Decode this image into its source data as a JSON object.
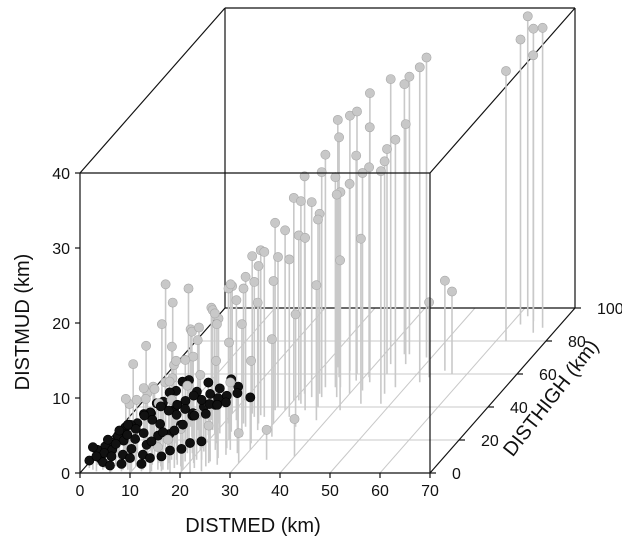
{
  "chart_data": {
    "type": "scatter",
    "style": "3d-stem",
    "title": "",
    "xlabel": "DISTMED (km)",
    "ylabel": "DISTHIGH (km)",
    "zlabel": "DISTMUD (km)",
    "xlim": [
      0,
      70
    ],
    "ylim": [
      0,
      100
    ],
    "zlim": [
      0,
      40
    ],
    "x_ticks": [
      "0",
      "10",
      "20",
      "30",
      "40",
      "50",
      "60",
      "70"
    ],
    "y_ticks": [
      "0",
      "20",
      "40",
      "60",
      "80",
      "100"
    ],
    "z_ticks": [
      "0",
      "10",
      "20",
      "30",
      "40"
    ],
    "grid": true,
    "colors": {
      "gray_series": "#c8c8c8",
      "black_series": "#111111",
      "stem": "#c9c9c9",
      "box": "#111111"
    },
    "series": [
      {
        "color": "#c8c8c8",
        "points": [
          [
            62,
            95,
            40
          ],
          [
            62,
            90,
            38
          ],
          [
            64,
            92,
            39
          ],
          [
            67,
            88,
            40
          ],
          [
            66,
            85,
            37
          ],
          [
            62,
            80,
            36
          ],
          [
            52,
            55,
            42
          ],
          [
            49,
            70,
            40
          ],
          [
            45,
            72,
            37
          ],
          [
            40,
            62,
            37
          ],
          [
            43,
            66,
            38
          ],
          [
            44,
            72,
            36
          ],
          [
            42,
            55,
            34
          ],
          [
            48,
            42,
            31
          ],
          [
            47,
            48,
            31
          ],
          [
            48,
            52,
            33
          ],
          [
            33,
            64,
            33
          ],
          [
            36,
            62,
            34
          ],
          [
            38,
            60,
            35
          ],
          [
            35,
            58,
            32
          ],
          [
            34,
            52,
            31
          ],
          [
            31,
            48,
            29
          ],
          [
            32,
            42,
            27
          ],
          [
            35,
            46,
            30
          ],
          [
            28,
            38,
            25
          ],
          [
            30,
            44,
            27
          ],
          [
            26,
            35,
            22
          ],
          [
            24,
            36,
            21
          ],
          [
            27,
            30,
            21
          ],
          [
            25,
            28,
            20
          ],
          [
            22,
            28,
            19
          ],
          [
            20,
            24,
            16
          ],
          [
            21,
            30,
            18
          ],
          [
            18,
            20,
            15
          ],
          [
            19,
            26,
            16
          ],
          [
            16,
            22,
            14
          ],
          [
            17,
            14,
            12
          ],
          [
            14,
            18,
            11
          ],
          [
            15,
            12,
            10
          ],
          [
            12,
            10,
            9
          ],
          [
            13,
            14,
            9
          ],
          [
            10,
            12,
            8
          ],
          [
            8,
            4,
            9
          ],
          [
            11,
            6,
            10
          ],
          [
            12,
            4,
            9
          ],
          [
            14,
            6,
            8
          ],
          [
            16,
            8,
            8
          ],
          [
            18,
            12,
            9
          ],
          [
            20,
            14,
            10
          ],
          [
            22,
            18,
            11
          ],
          [
            24,
            20,
            13
          ],
          [
            26,
            22,
            15
          ],
          [
            28,
            26,
            17
          ],
          [
            30,
            30,
            19
          ],
          [
            32,
            34,
            21
          ],
          [
            34,
            38,
            23
          ],
          [
            36,
            40,
            25
          ],
          [
            38,
            46,
            27
          ],
          [
            40,
            48,
            28
          ],
          [
            42,
            50,
            29
          ],
          [
            39,
            56,
            30
          ],
          [
            36,
            52,
            28
          ],
          [
            33,
            46,
            26
          ],
          [
            30,
            38,
            24
          ],
          [
            27,
            34,
            22
          ],
          [
            24,
            30,
            18
          ],
          [
            21,
            22,
            15
          ],
          [
            18,
            16,
            12
          ],
          [
            15,
            10,
            10
          ],
          [
            9,
            8,
            8
          ],
          [
            7,
            10,
            7
          ],
          [
            10,
            16,
            8
          ],
          [
            13,
            20,
            10
          ],
          [
            16,
            26,
            12
          ],
          [
            19,
            30,
            14
          ],
          [
            22,
            32,
            16
          ],
          [
            25,
            34,
            18
          ],
          [
            28,
            40,
            20
          ],
          [
            31,
            44,
            22
          ],
          [
            34,
            48,
            24
          ],
          [
            37,
            52,
            26
          ],
          [
            41,
            58,
            28
          ],
          [
            44,
            60,
            30
          ],
          [
            46,
            66,
            32
          ],
          [
            23,
            10,
            7
          ],
          [
            26,
            14,
            9
          ],
          [
            29,
            18,
            11
          ],
          [
            32,
            22,
            13
          ],
          [
            35,
            28,
            15
          ],
          [
            38,
            32,
            18
          ],
          [
            41,
            38,
            20
          ],
          [
            44,
            42,
            22
          ],
          [
            12,
            22,
            12
          ],
          [
            14,
            28,
            13
          ],
          [
            17,
            32,
            15
          ],
          [
            20,
            36,
            17
          ],
          [
            6,
            16,
            11
          ],
          [
            8,
            18,
            13
          ],
          [
            10,
            22,
            15
          ],
          [
            11,
            26,
            17
          ],
          [
            13,
            30,
            18
          ],
          [
            9,
            28,
            19
          ],
          [
            21,
            8,
            6
          ],
          [
            24,
            6,
            5
          ],
          [
            19,
            4,
            5
          ],
          [
            17,
            2,
            4
          ],
          [
            15,
            2,
            3
          ],
          [
            55,
            62,
            12
          ],
          [
            57,
            60,
            11
          ],
          [
            53,
            58,
            10
          ],
          [
            40,
            10,
            5
          ],
          [
            35,
            8,
            4
          ],
          [
            30,
            6,
            4
          ]
        ]
      },
      {
        "color": "#111111",
        "points": [
          [
            2,
            2,
            3
          ],
          [
            3,
            1,
            2
          ],
          [
            4,
            3,
            2
          ],
          [
            5,
            2,
            4
          ],
          [
            6,
            4,
            3
          ],
          [
            7,
            3,
            5
          ],
          [
            8,
            5,
            4
          ],
          [
            9,
            2,
            6
          ],
          [
            10,
            4,
            5
          ],
          [
            11,
            6,
            4
          ],
          [
            12,
            3,
            7
          ],
          [
            13,
            5,
            6
          ],
          [
            14,
            7,
            5
          ],
          [
            15,
            4,
            8
          ],
          [
            16,
            6,
            7
          ],
          [
            17,
            8,
            6
          ],
          [
            18,
            5,
            8
          ],
          [
            19,
            7,
            7
          ],
          [
            20,
            9,
            6
          ],
          [
            21,
            6,
            9
          ],
          [
            22,
            8,
            8
          ],
          [
            23,
            10,
            7
          ],
          [
            24,
            7,
            9
          ],
          [
            25,
            9,
            8
          ],
          [
            26,
            11,
            7
          ],
          [
            28,
            12,
            8
          ],
          [
            30,
            14,
            7
          ],
          [
            3,
            4,
            1
          ],
          [
            4,
            2,
            1
          ],
          [
            5,
            5,
            2
          ],
          [
            6,
            1,
            2
          ],
          [
            7,
            6,
            3
          ],
          [
            8,
            2,
            2
          ],
          [
            9,
            7,
            3
          ],
          [
            10,
            1,
            3
          ],
          [
            11,
            8,
            2
          ],
          [
            12,
            2,
            2
          ],
          [
            13,
            9,
            3
          ],
          [
            14,
            1,
            4
          ],
          [
            15,
            10,
            3
          ],
          [
            16,
            2,
            5
          ],
          [
            17,
            11,
            4
          ],
          [
            18,
            3,
            5
          ],
          [
            19,
            12,
            5
          ],
          [
            20,
            2,
            6
          ],
          [
            21,
            13,
            6
          ],
          [
            22,
            3,
            7
          ],
          [
            23,
            14,
            6
          ],
          [
            24,
            4,
            7
          ],
          [
            25,
            15,
            7
          ],
          [
            26,
            5,
            8
          ],
          [
            27,
            16,
            8
          ],
          [
            2,
            6,
            1
          ],
          [
            3,
            7,
            2
          ],
          [
            4,
            8,
            2
          ],
          [
            5,
            9,
            3
          ],
          [
            6,
            10,
            3
          ],
          [
            7,
            11,
            4
          ],
          [
            8,
            12,
            4
          ],
          [
            9,
            13,
            5
          ],
          [
            10,
            14,
            5
          ],
          [
            11,
            15,
            6
          ],
          [
            12,
            16,
            6
          ],
          [
            13,
            17,
            7
          ],
          [
            14,
            18,
            7
          ],
          [
            15,
            19,
            8
          ],
          [
            16,
            20,
            8
          ],
          [
            6,
            0,
            1
          ],
          [
            8,
            1,
            1
          ],
          [
            10,
            0,
            2
          ],
          [
            12,
            1,
            1
          ],
          [
            14,
            0,
            2
          ],
          [
            16,
            1,
            2
          ],
          [
            18,
            0,
            3
          ],
          [
            20,
            1,
            3
          ],
          [
            22,
            0,
            4
          ],
          [
            24,
            1,
            4
          ],
          [
            1,
            3,
            1
          ],
          [
            2,
            5,
            2
          ],
          [
            3,
            9,
            1
          ],
          [
            4,
            12,
            2
          ],
          [
            5,
            14,
            3
          ],
          [
            9,
            18,
            4
          ],
          [
            11,
            19,
            5
          ],
          [
            13,
            20,
            4
          ],
          [
            15,
            21,
            5
          ],
          [
            17,
            22,
            6
          ],
          [
            19,
            23,
            7
          ],
          [
            21,
            24,
            6
          ],
          [
            23,
            25,
            7
          ]
        ]
      }
    ]
  }
}
